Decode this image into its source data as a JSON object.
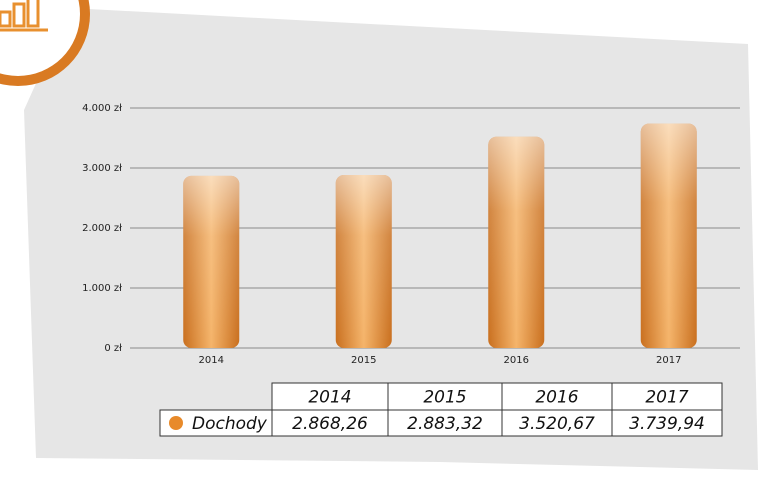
{
  "chart_data": {
    "type": "bar",
    "categories": [
      "2014",
      "2015",
      "2016",
      "2017"
    ],
    "series": [
      {
        "name": "Dochody",
        "color": "#e88a2a",
        "values": [
          2868.26,
          2883.32,
          3520.67,
          3739.94
        ],
        "value_labels": [
          "2.868,26",
          "2.883,32",
          "3.520,67",
          "3.739,94"
        ]
      }
    ],
    "ylim": [
      0,
      4000
    ],
    "yticks": [
      {
        "value": 0,
        "label": "0 zł"
      },
      {
        "value": 1000,
        "label": "1.000 zł"
      },
      {
        "value": 2000,
        "label": "2.000 zł"
      },
      {
        "value": 3000,
        "label": "3.000 zł"
      },
      {
        "value": 4000,
        "label": "4.000 zł"
      }
    ],
    "grid": true
  }
}
